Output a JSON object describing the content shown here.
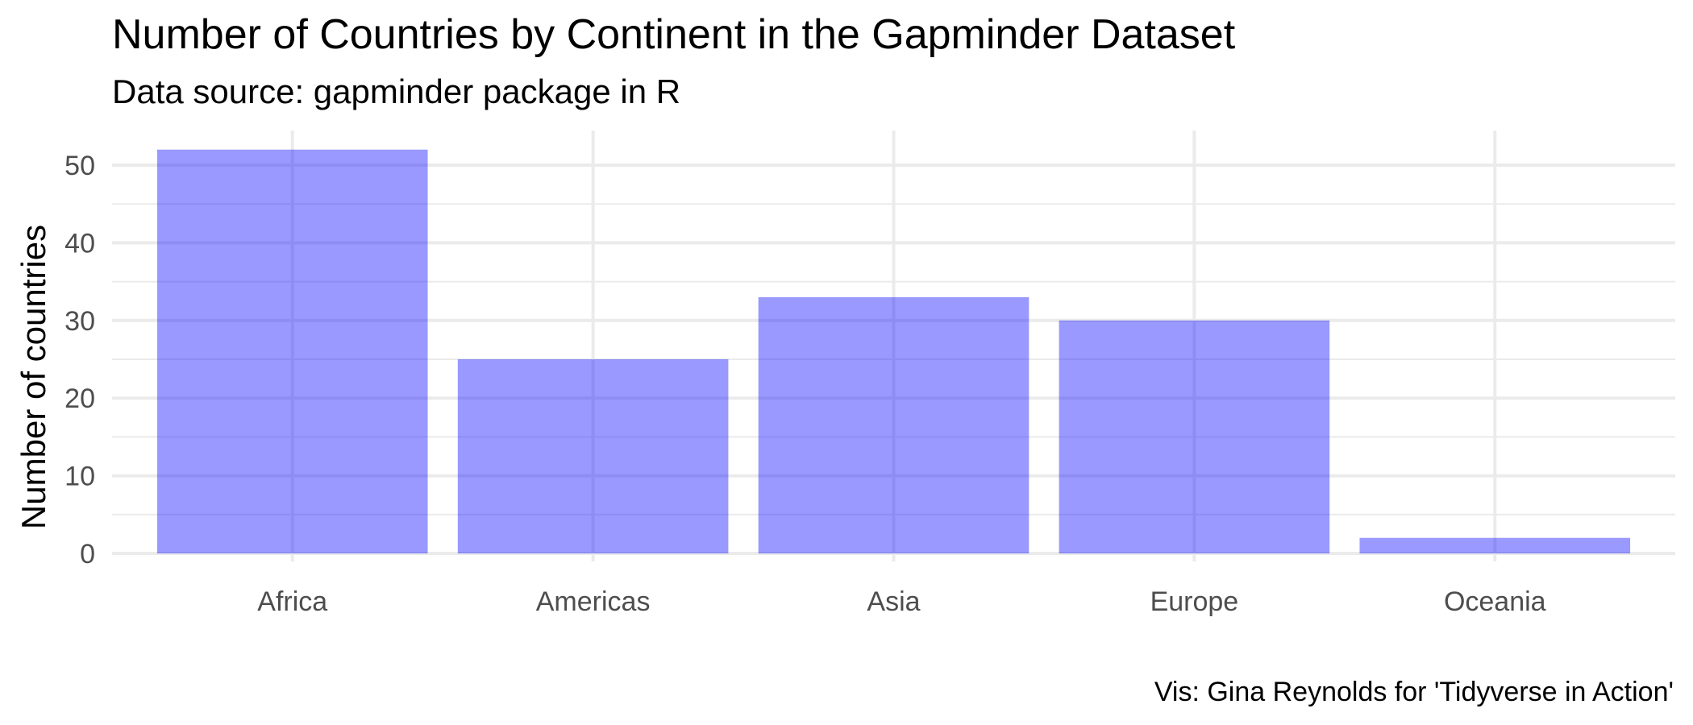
{
  "chart_data": {
    "type": "bar",
    "title": "Number of Countries by Continent in the Gapminder Dataset",
    "subtitle": "Data source: gapminder package in R",
    "caption": "Vis: Gina Reynolds for 'Tidyverse in Action'",
    "xlabel": "",
    "ylabel": "Number of countries",
    "categories": [
      "Africa",
      "Americas",
      "Asia",
      "Europe",
      "Oceania"
    ],
    "values": [
      52,
      25,
      33,
      30,
      2
    ],
    "ylim": [
      0,
      54.6
    ],
    "yticks": [
      0,
      10,
      20,
      30,
      40,
      50
    ],
    "grid": true,
    "legend": "none",
    "bar_color": "#0000ff",
    "bar_opacity": 0.4,
    "grid_color": "#ebebeb",
    "background": "#ffffff"
  }
}
